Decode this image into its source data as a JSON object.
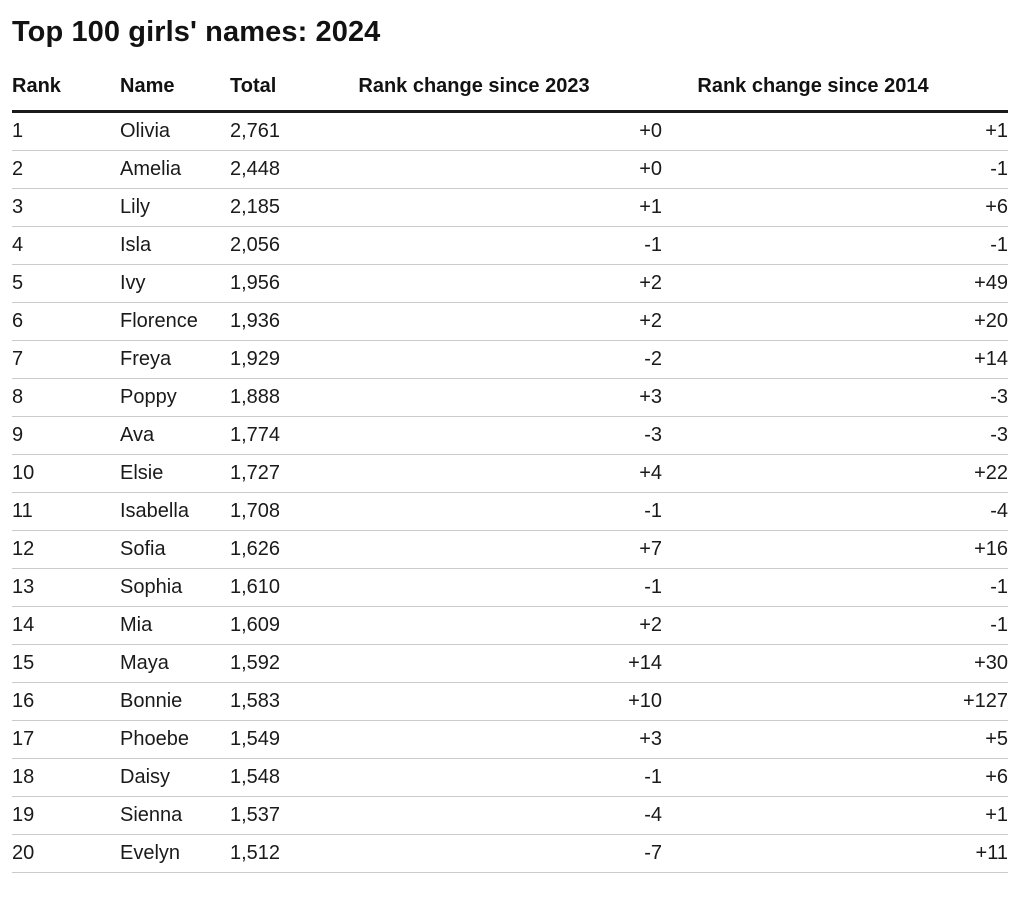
{
  "title": "Top 100 girls' names: 2024",
  "chart_data": {
    "type": "table",
    "title": "Top 100 girls' names: 2024",
    "columns": [
      "Rank",
      "Name",
      "Total",
      "Rank change since 2023",
      "Rank change since 2014"
    ],
    "rows": [
      [
        "1",
        "Olivia",
        "2,761",
        "+0",
        "+1"
      ],
      [
        "2",
        "Amelia",
        "2,448",
        "+0",
        "-1"
      ],
      [
        "3",
        "Lily",
        "2,185",
        "+1",
        "+6"
      ],
      [
        "4",
        "Isla",
        "2,056",
        "-1",
        "-1"
      ],
      [
        "5",
        "Ivy",
        "1,956",
        "+2",
        "+49"
      ],
      [
        "6",
        "Florence",
        "1,936",
        "+2",
        "+20"
      ],
      [
        "7",
        "Freya",
        "1,929",
        "-2",
        "+14"
      ],
      [
        "8",
        "Poppy",
        "1,888",
        "+3",
        "-3"
      ],
      [
        "9",
        "Ava",
        "1,774",
        "-3",
        "-3"
      ],
      [
        "10",
        "Elsie",
        "1,727",
        "+4",
        "+22"
      ],
      [
        "11",
        "Isabella",
        "1,708",
        "-1",
        "-4"
      ],
      [
        "12",
        "Sofia",
        "1,626",
        "+7",
        "+16"
      ],
      [
        "13",
        "Sophia",
        "1,610",
        "-1",
        "-1"
      ],
      [
        "14",
        "Mia",
        "1,609",
        "+2",
        "-1"
      ],
      [
        "15",
        "Maya",
        "1,592",
        "+14",
        "+30"
      ],
      [
        "16",
        "Bonnie",
        "1,583",
        "+10",
        "+127"
      ],
      [
        "17",
        "Phoebe",
        "1,549",
        "+3",
        "+5"
      ],
      [
        "18",
        "Daisy",
        "1,548",
        "-1",
        "+6"
      ],
      [
        "19",
        "Sienna",
        "1,537",
        "-4",
        "+1"
      ],
      [
        "20",
        "Evelyn",
        "1,512",
        "-7",
        "+11"
      ]
    ]
  },
  "colors": {
    "text": "#1a1a1a",
    "heavy_rule": "#1a1a1a",
    "light_rule": "#cbcbcb",
    "background": "#ffffff"
  }
}
